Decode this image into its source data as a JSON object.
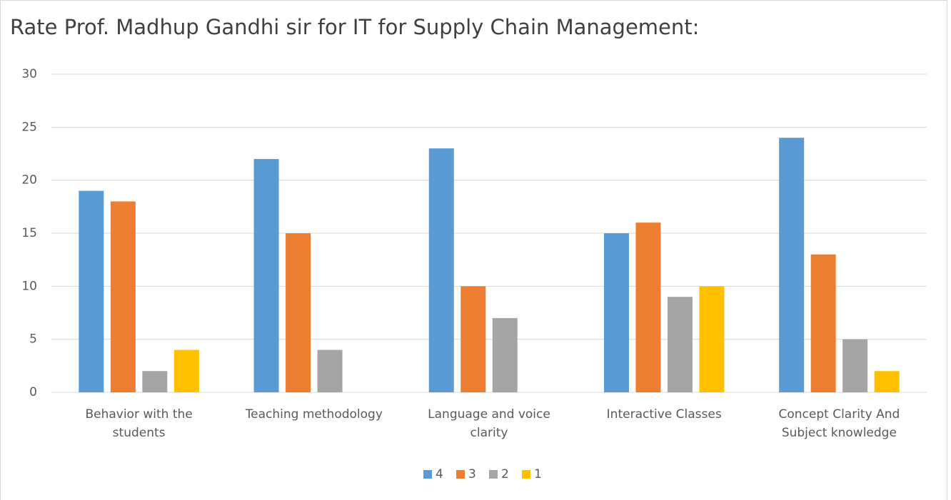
{
  "chart_data": {
    "type": "bar",
    "title": "Rate Prof. Madhup Gandhi sir for IT for Supply Chain Management:",
    "categories": [
      "Behavior with the students",
      "Teaching methodology",
      "Language and voice clarity",
      "Interactive Classes",
      "Concept Clarity And Subject knowledge"
    ],
    "series": [
      {
        "name": "4",
        "color": "#5b9bd5",
        "values": [
          19,
          22,
          23,
          15,
          24
        ]
      },
      {
        "name": "3",
        "color": "#ed7d31",
        "values": [
          18,
          15,
          10,
          16,
          13
        ]
      },
      {
        "name": "2",
        "color": "#a5a5a5",
        "values": [
          2,
          4,
          7,
          9,
          5
        ]
      },
      {
        "name": "1",
        "color": "#ffc000",
        "values": [
          4,
          0,
          0,
          10,
          2
        ]
      }
    ],
    "ylim": [
      0,
      30
    ],
    "yticks": [
      0,
      5,
      10,
      15,
      20,
      25,
      30
    ],
    "grid": true,
    "legend": "bottom"
  }
}
